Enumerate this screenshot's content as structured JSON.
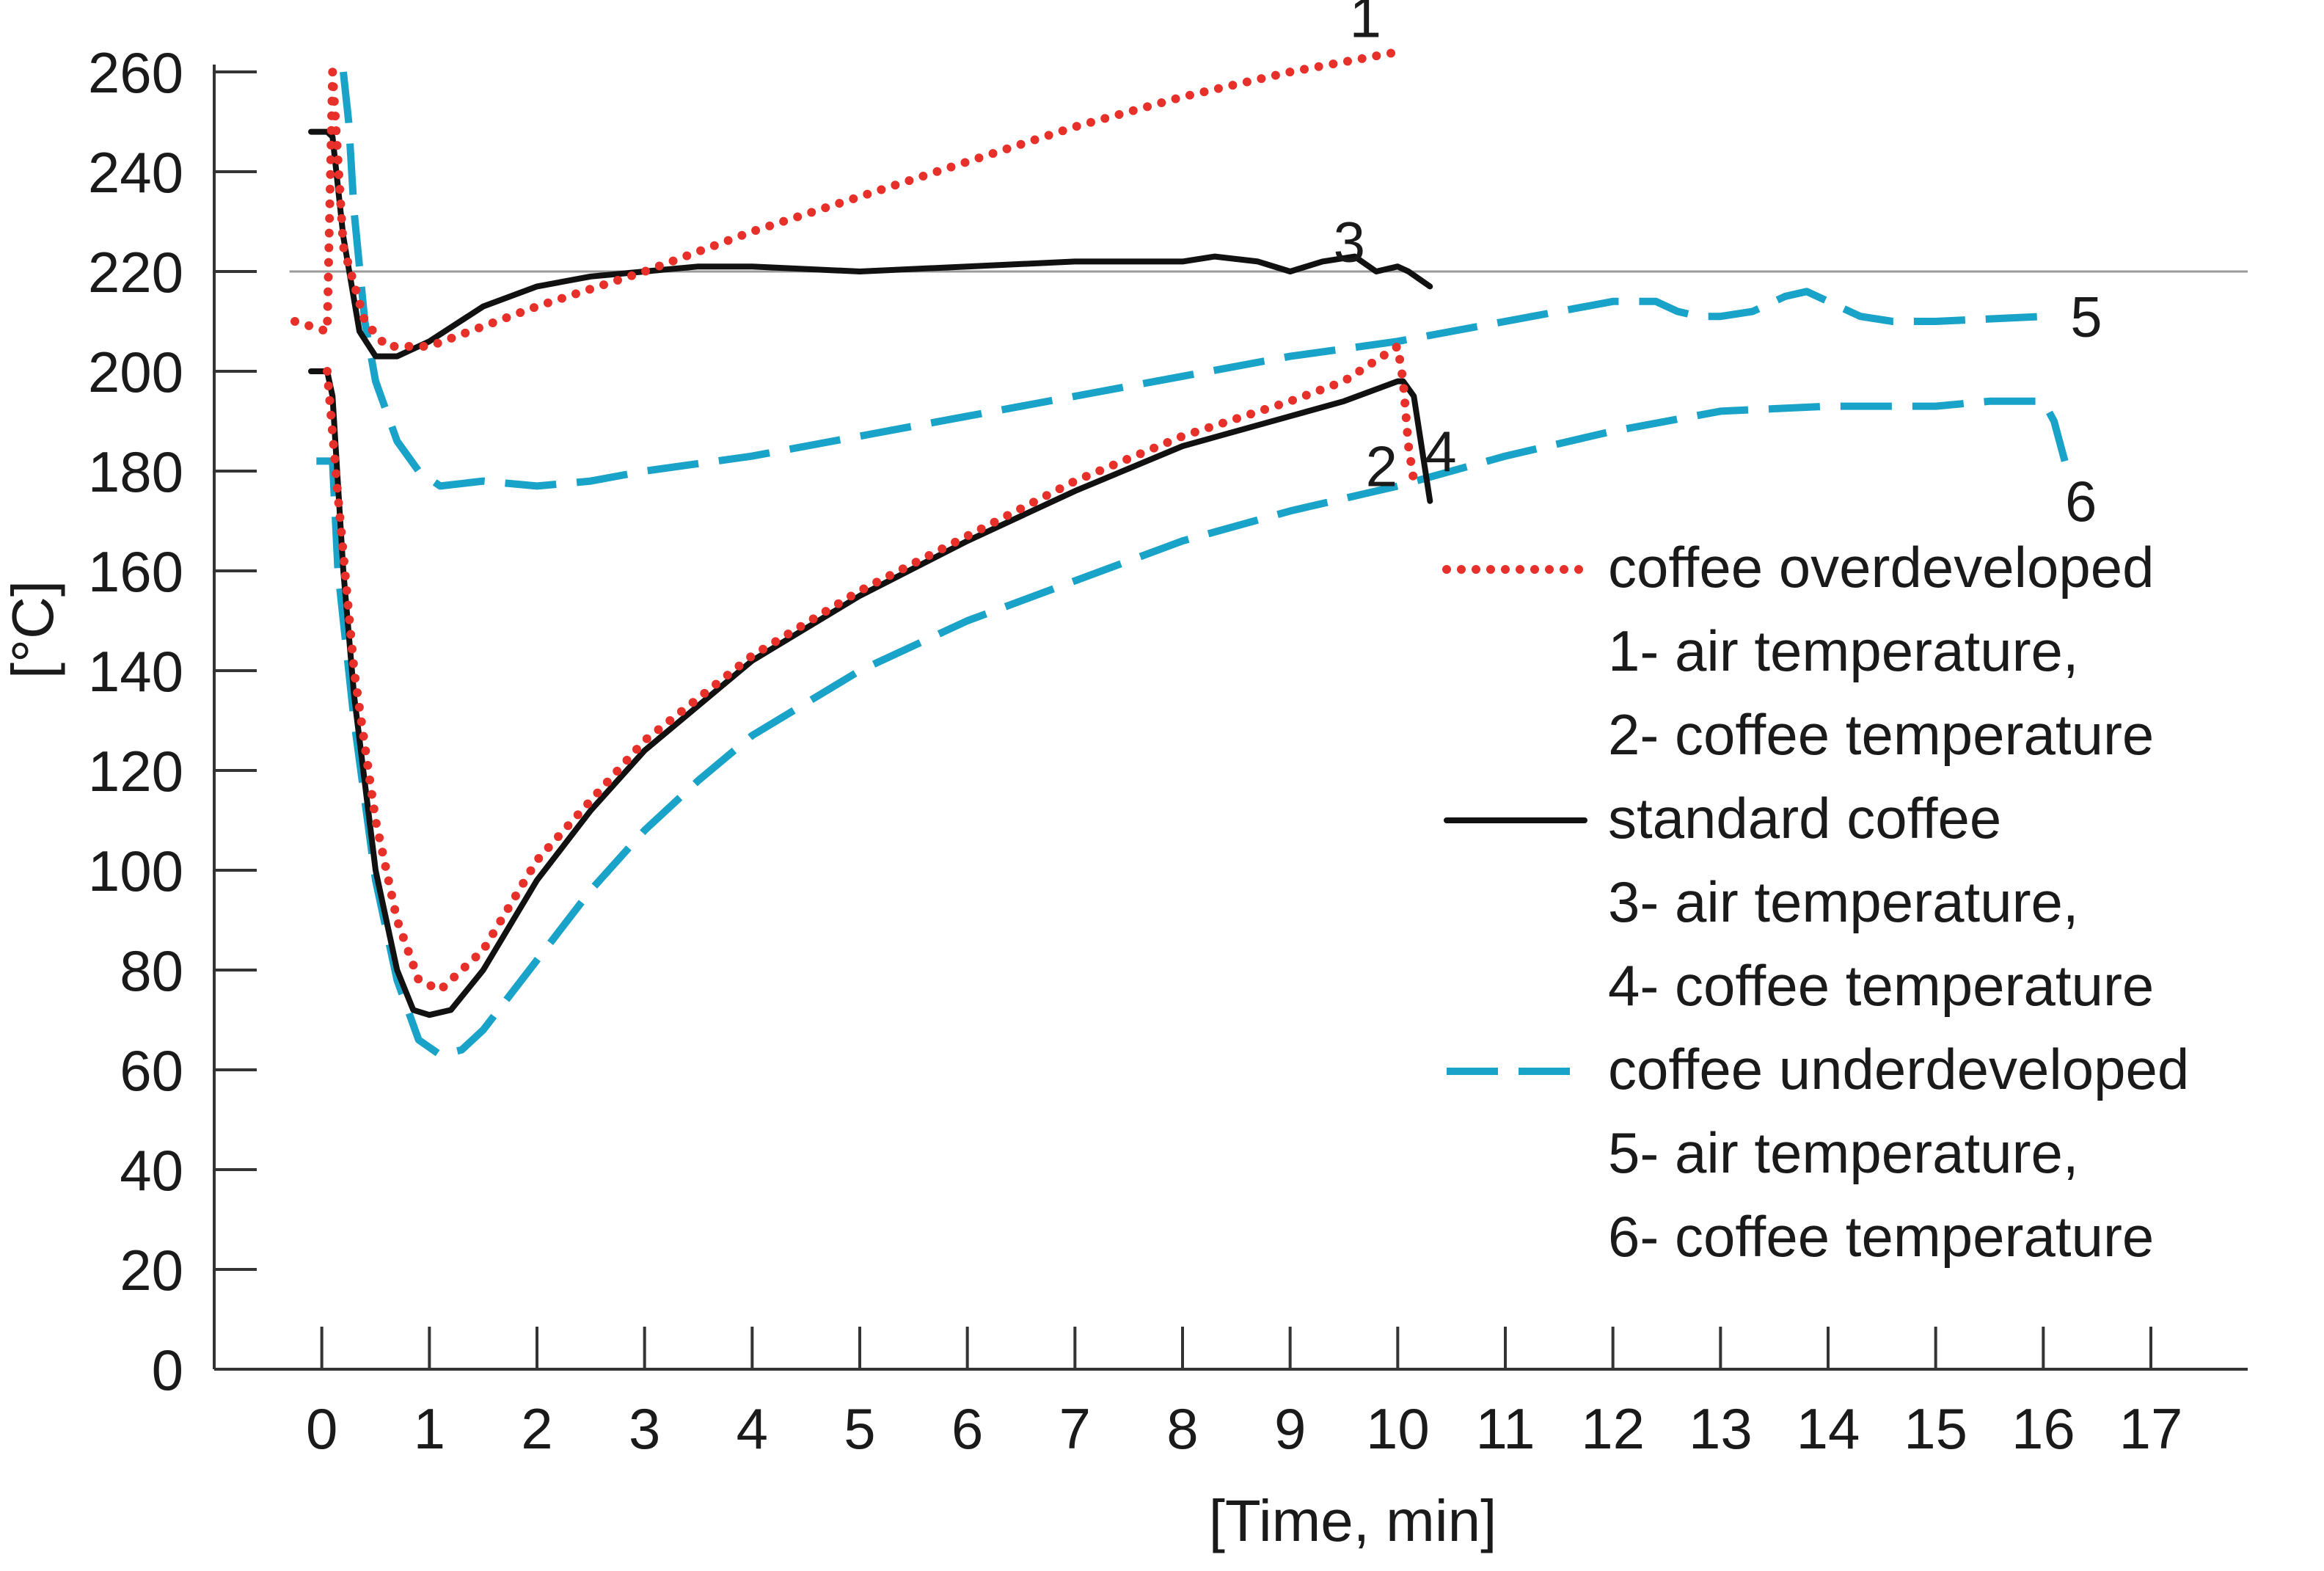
{
  "chart_data": {
    "type": "line",
    "title": "",
    "xlabel": "[Time, min]",
    "ylabel": "[°C]",
    "xlim": [
      -1,
      17.9
    ],
    "ylim": [
      0,
      260
    ],
    "x_ticks": [
      0,
      1,
      2,
      3,
      4,
      5,
      6,
      7,
      8,
      9,
      10,
      11,
      12,
      13,
      14,
      15,
      16,
      17
    ],
    "y_ticks": [
      0,
      20,
      40,
      60,
      80,
      100,
      120,
      140,
      160,
      180,
      200,
      220,
      240,
      260
    ],
    "reference_line": {
      "y": 220,
      "from_x": -0.3,
      "to_x": 17.9
    },
    "colors": {
      "overdeveloped": "#e8302a",
      "standard": "#111111",
      "underdeveloped": "#1aa3c8"
    },
    "series": [
      {
        "id": "1",
        "name": "air temperature",
        "group": "overdeveloped",
        "style": "dotted",
        "x": [
          -0.25,
          0.05,
          0.1,
          0.2,
          0.4,
          0.6,
          1,
          2,
          3,
          4,
          5,
          6,
          7,
          8,
          9,
          9.5,
          10,
          10.05
        ],
        "y": [
          210,
          208,
          260,
          225,
          210,
          205,
          205,
          213,
          220,
          228,
          235,
          242,
          249,
          255,
          260,
          262,
          264,
          264
        ]
      },
      {
        "id": "2",
        "name": "coffee temperature",
        "group": "overdeveloped",
        "style": "dotted",
        "x": [
          0.05,
          0.15,
          0.3,
          0.5,
          0.7,
          0.9,
          1.1,
          1.5,
          2,
          3,
          4,
          5,
          6,
          7,
          8,
          9,
          9.5,
          10,
          10.05,
          10.1,
          10.15
        ],
        "y": [
          200,
          175,
          140,
          110,
          90,
          78,
          76,
          84,
          102,
          126,
          143,
          156,
          167,
          178,
          187,
          194,
          198,
          205,
          198,
          185,
          178
        ]
      },
      {
        "id": "3",
        "name": "air temperature",
        "group": "standard",
        "style": "solid",
        "x": [
          -0.1,
          0.05,
          0.1,
          0.2,
          0.35,
          0.5,
          0.7,
          1,
          1.5,
          2,
          2.5,
          3,
          3.5,
          4,
          5,
          6,
          7,
          8,
          8.3,
          8.7,
          9,
          9.3,
          9.6,
          9.8,
          10,
          10.1,
          10.3
        ],
        "y": [
          248,
          248,
          247,
          227,
          208,
          203,
          203,
          206,
          213,
          217,
          219,
          220,
          221,
          221,
          220,
          221,
          222,
          222,
          223,
          222,
          220,
          222,
          223,
          220,
          221,
          220,
          217
        ]
      },
      {
        "id": "4",
        "name": "coffee temperature",
        "group": "standard",
        "style": "solid",
        "x": [
          -0.1,
          0.05,
          0.1,
          0.2,
          0.3,
          0.5,
          0.7,
          0.85,
          1,
          1.2,
          1.5,
          2,
          2.5,
          3,
          4,
          5,
          6,
          7,
          8,
          9,
          9.5,
          10,
          10.05,
          10.15,
          10.3
        ],
        "y": [
          200,
          200,
          195,
          160,
          135,
          100,
          80,
          72,
          71,
          72,
          80,
          98,
          112,
          124,
          142,
          155,
          166,
          176,
          185,
          191,
          194,
          198,
          198,
          195,
          174
        ]
      },
      {
        "id": "5",
        "name": "air temperature",
        "group": "underdeveloped",
        "style": "dashed",
        "x": [
          0.2,
          0.25,
          0.3,
          0.4,
          0.5,
          0.7,
          0.9,
          1.1,
          1.5,
          2,
          2.5,
          3,
          4,
          5,
          6,
          7,
          8,
          9,
          10,
          11,
          12,
          12.4,
          12.6,
          12.8,
          13,
          13.3,
          13.6,
          13.8,
          14,
          14.3,
          14.6,
          15,
          16,
          16.1
        ],
        "y": [
          260,
          250,
          232,
          210,
          198,
          186,
          180,
          177,
          178,
          177,
          178,
          180,
          183,
          187,
          191,
          195,
          199,
          203,
          206,
          210,
          214,
          214,
          212,
          211,
          211,
          212,
          215,
          216,
          214,
          211,
          210,
          210,
          211,
          211
        ]
      },
      {
        "id": "6",
        "name": "coffee temperature",
        "group": "underdeveloped",
        "style": "dashed",
        "x": [
          -0.05,
          0.1,
          0.15,
          0.3,
          0.5,
          0.7,
          0.9,
          1.1,
          1.3,
          1.5,
          2,
          2.5,
          3,
          3.5,
          4,
          5,
          6,
          7,
          8,
          9,
          10,
          11,
          12,
          13,
          14,
          15,
          15.5,
          16,
          16.1,
          16.2
        ],
        "y": [
          182,
          182,
          160,
          130,
          98,
          78,
          66,
          63,
          64,
          68,
          82,
          96,
          108,
          118,
          127,
          140,
          150,
          158,
          166,
          172,
          177,
          183,
          188,
          192,
          193,
          193,
          194,
          194,
          190,
          182
        ]
      }
    ],
    "curve_labels": [
      {
        "text": "1",
        "x": 9.7,
        "y": 267
      },
      {
        "text": "2",
        "x": 9.85,
        "y": 177
      },
      {
        "text": "3",
        "x": 9.55,
        "y": 222
      },
      {
        "text": "4",
        "x": 10.4,
        "y": 180
      },
      {
        "text": "5",
        "x": 16.4,
        "y": 207
      },
      {
        "text": "6",
        "x": 16.35,
        "y": 170
      }
    ],
    "legend": {
      "placement": "right",
      "groups": [
        {
          "name": "coffee overdeveloped",
          "style": "dotted",
          "color_key": "overdeveloped",
          "lines": [
            "1- air temperature,",
            "2- coffee temperature"
          ]
        },
        {
          "name": "standard coffee",
          "style": "solid",
          "color_key": "standard",
          "lines": [
            "3- air temperature,",
            "4- coffee temperature"
          ]
        },
        {
          "name": "coffee underdeveloped",
          "style": "dashed",
          "color_key": "underdeveloped",
          "lines": [
            "5- air temperature,",
            "6- coffee temperature"
          ]
        }
      ]
    }
  }
}
